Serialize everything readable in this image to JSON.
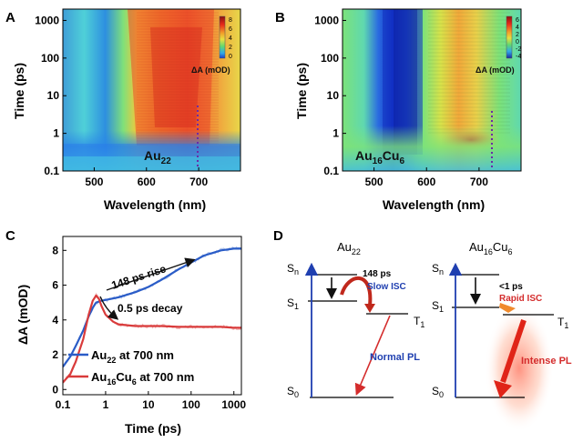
{
  "panels": {
    "A": {
      "letter": "A",
      "sample": "Au",
      "sample_sub": "22"
    },
    "B": {
      "letter": "B",
      "sample": "Au",
      "sample_sub1": "16",
      "sample_mid": "Cu",
      "sample_sub2": "6"
    },
    "C": {
      "letter": "C"
    },
    "D": {
      "letter": "D"
    }
  },
  "heatmap_axes": {
    "ylabel": "Time (ps)",
    "xlabel": "Wavelength (nm)",
    "yticks": [
      "0.1",
      "1",
      "10",
      "100",
      "1000"
    ],
    "xticks": [
      "500",
      "600",
      "700"
    ],
    "colorbar_label": "ΔA (mOD)",
    "colorbar_ticks_A": [
      "8",
      "6",
      "4",
      "2",
      "0"
    ],
    "colorbar_ticks_B": [
      "6",
      "4",
      "2",
      "0",
      "-2",
      "-4"
    ]
  },
  "kinetics": {
    "ylabel": "ΔA (mOD)",
    "xlabel": "Time (ps)",
    "yticks": [
      "0",
      "2",
      "4",
      "6",
      "8"
    ],
    "xticks": [
      "0.1",
      "1",
      "10",
      "100",
      "1000"
    ],
    "annotation_rise": "148 ps rise",
    "annotation_decay": "0.5 ps decay",
    "legend": [
      {
        "main": "Au",
        "sub": "22",
        "rest": " at 700 nm",
        "color": "#2a5cc7"
      },
      {
        "main": "Au",
        "sub": "16",
        "mid": "Cu",
        "sub2": "6",
        "rest": " at 700 nm",
        "color": "#d93b3b"
      }
    ]
  },
  "diagram": {
    "left_title": "Au",
    "left_title_sub": "22",
    "right_title": "Au",
    "right_title_sub": "16",
    "right_title_mid": "Cu",
    "right_title_sub2": "6",
    "sn": "S",
    "sn_sub": "n",
    "s1": "S",
    "s1_sub": "1",
    "s0": "S",
    "s0_sub": "0",
    "t1": "T",
    "t1_sub": "1",
    "left_isc_time": "148 ps",
    "left_isc_label": "Slow ISC",
    "left_pl_label": "Normal PL",
    "right_isc_time": "<1 ps",
    "right_isc_label": "Rapid ISC",
    "right_pl_label": "Intense PL",
    "colors": {
      "blue": "#1f3fb0",
      "red": "#d42c2c",
      "orange": "#f08a2c"
    }
  },
  "chart_data": [
    {
      "type": "heatmap",
      "panel": "A",
      "title": "",
      "xlabel": "Wavelength (nm)",
      "ylabel": "Time (ps)",
      "xlim": [
        440,
        780
      ],
      "ylim": [
        0.1,
        2000
      ],
      "yscale": "log",
      "zlabel": "ΔA (mOD)",
      "zlim": [
        -1,
        8
      ],
      "annotation": "Au22",
      "marker_wavelength": 700
    },
    {
      "type": "heatmap",
      "panel": "B",
      "title": "",
      "xlabel": "Wavelength (nm)",
      "ylabel": "Time (ps)",
      "xlim": [
        440,
        780
      ],
      "ylim": [
        0.1,
        2000
      ],
      "yscale": "log",
      "zlabel": "ΔA (mOD)",
      "zlim": [
        -4,
        6
      ],
      "annotation": "Au16Cu6",
      "marker_wavelength": 700
    },
    {
      "type": "line",
      "panel": "C",
      "xlabel": "Time (ps)",
      "ylabel": "ΔA (mOD)",
      "xscale": "log",
      "xlim": [
        0.1,
        1500
      ],
      "ylim": [
        -0.3,
        8.8
      ],
      "series": [
        {
          "name": "Au22 at 700 nm",
          "x": [
            0.1,
            0.15,
            0.2,
            0.3,
            0.4,
            0.5,
            0.6,
            0.8,
            1,
            2,
            5,
            10,
            20,
            50,
            100,
            200,
            500,
            1000,
            1500
          ],
          "y": [
            1.3,
            1.9,
            2.5,
            3.4,
            4.2,
            4.7,
            5.0,
            5.1,
            5.15,
            5.3,
            5.6,
            5.9,
            6.3,
            6.9,
            7.3,
            7.7,
            8.0,
            8.1,
            8.1
          ]
        },
        {
          "name": "Au16Cu6 at 700 nm",
          "x": [
            0.1,
            0.15,
            0.2,
            0.3,
            0.4,
            0.5,
            0.6,
            0.7,
            0.8,
            1,
            1.5,
            2,
            3,
            5,
            10,
            20,
            50,
            100,
            200,
            500,
            1000,
            1500
          ],
          "y": [
            0.4,
            0.9,
            1.6,
            2.9,
            4.3,
            5.1,
            5.4,
            5.2,
            4.8,
            4.3,
            3.9,
            3.75,
            3.7,
            3.65,
            3.65,
            3.65,
            3.6,
            3.6,
            3.6,
            3.6,
            3.55,
            3.55
          ]
        }
      ]
    }
  ]
}
